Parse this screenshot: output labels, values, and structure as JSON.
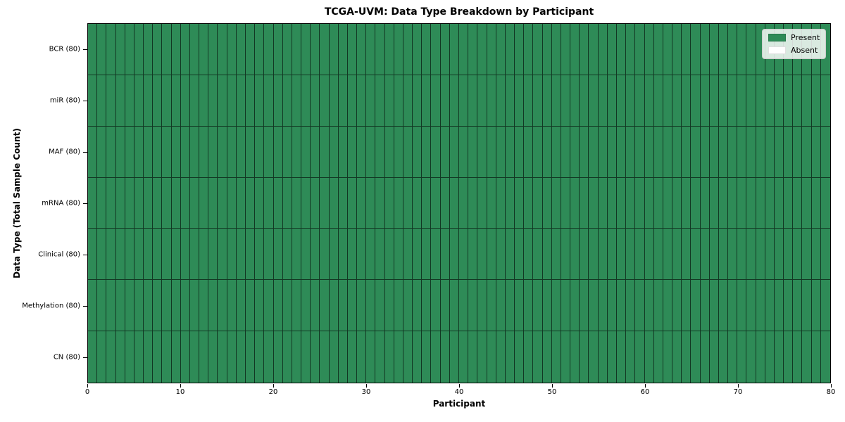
{
  "chart_data": {
    "type": "heatmap",
    "title": "TCGA-UVM: Data Type Breakdown by Participant",
    "xlabel": "Participant",
    "ylabel": "Data Type (Total Sample Count)",
    "xlim": [
      0,
      80
    ],
    "x_ticks": [
      0,
      10,
      20,
      30,
      40,
      50,
      60,
      70,
      80
    ],
    "n_participants": 80,
    "grid": false,
    "legend_position": "upper right",
    "rows": [
      {
        "label": "BCR (80)",
        "data_type": "BCR",
        "total_samples": 80,
        "present_count": 80,
        "absent_count": 0
      },
      {
        "label": "miR (80)",
        "data_type": "miR",
        "total_samples": 80,
        "present_count": 80,
        "absent_count": 0
      },
      {
        "label": "MAF (80)",
        "data_type": "MAF",
        "total_samples": 80,
        "present_count": 80,
        "absent_count": 0
      },
      {
        "label": "mRNA (80)",
        "data_type": "mRNA",
        "total_samples": 80,
        "present_count": 80,
        "absent_count": 0
      },
      {
        "label": "Clinical (80)",
        "data_type": "Clinical",
        "total_samples": 80,
        "present_count": 80,
        "absent_count": 0
      },
      {
        "label": "Methylation (80)",
        "data_type": "Methylation",
        "total_samples": 80,
        "present_count": 80,
        "absent_count": 0
      },
      {
        "label": "CN (80)",
        "data_type": "CN",
        "total_samples": 80,
        "present_count": 80,
        "absent_count": 0
      }
    ],
    "legend": [
      {
        "label": "Present",
        "color": "#2e8b57"
      },
      {
        "label": "Absent",
        "color": "#ffffff"
      }
    ],
    "colors": {
      "present": "#2e8b57",
      "absent": "#ffffff",
      "cell_edge": "rgba(0,0,0,0.6)",
      "axis": "#000000"
    }
  }
}
